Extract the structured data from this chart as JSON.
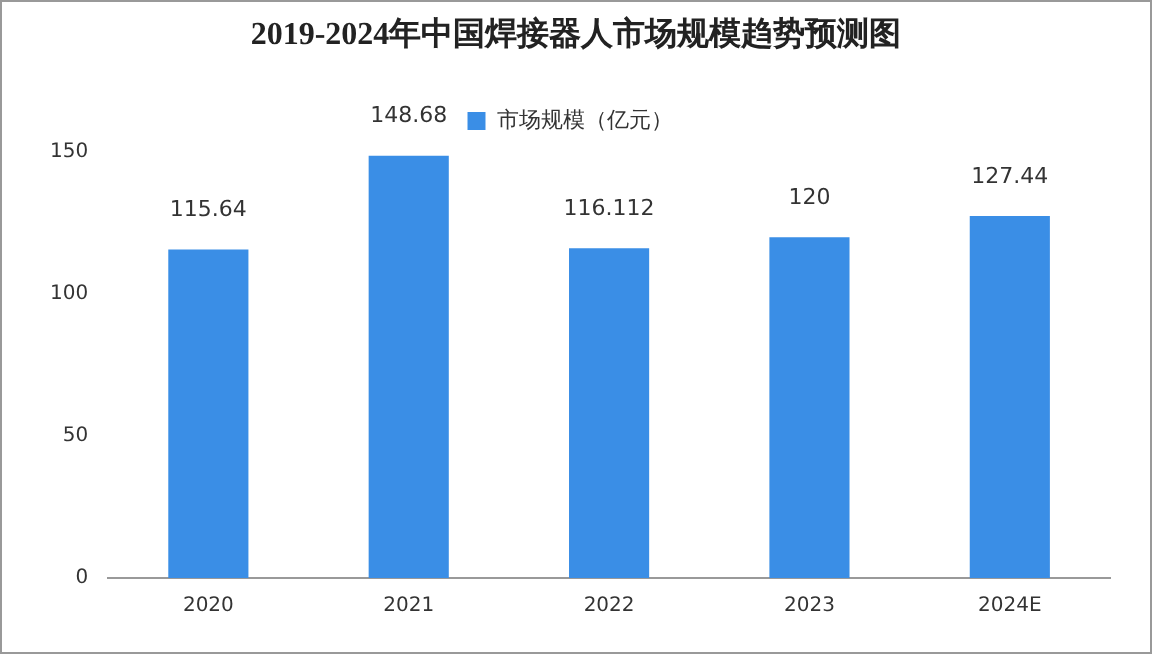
{
  "chart_data": {
    "type": "bar",
    "title": "2019-2024年中国焊接器人市场规模趋势预测图",
    "categories": [
      "2020",
      "2021",
      "2022",
      "2023",
      "2024E"
    ],
    "series": [
      {
        "name": "市场规模（亿元）",
        "color": "#3a8ee6",
        "values": [
          115.64,
          148.68,
          116.112,
          120,
          127.44
        ]
      }
    ],
    "ylim": [
      0,
      150
    ],
    "yticks": [
      0,
      50,
      100,
      150
    ],
    "grid": false,
    "legend": "top",
    "data_labels": true
  }
}
